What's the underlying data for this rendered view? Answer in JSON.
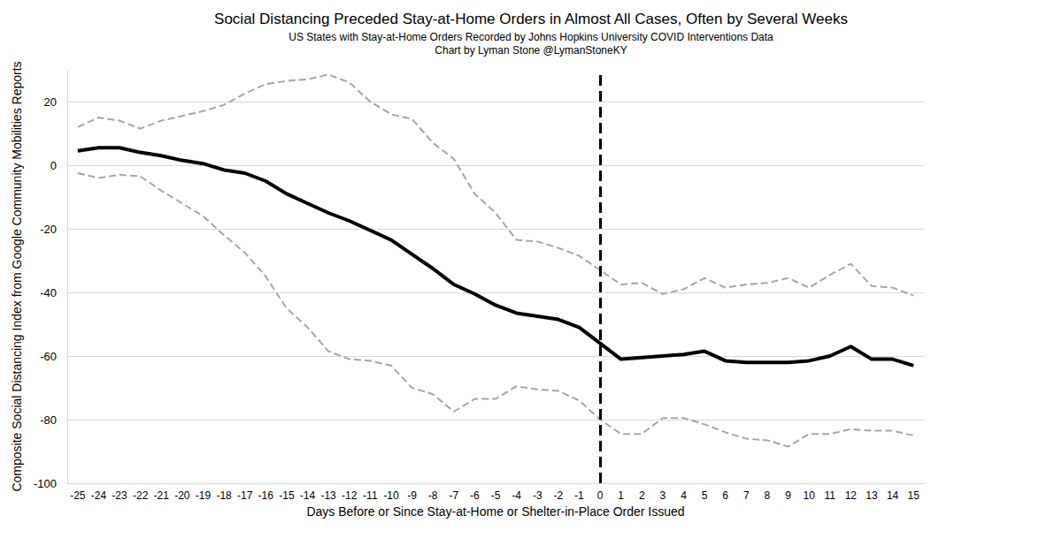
{
  "chart_data": {
    "type": "line",
    "title": "Social Distancing Preceded Stay-at-Home Orders in Almost All Cases, Often by Several Weeks",
    "subtitle": "US States with Stay-at-Home Orders Recorded by Johns Hopkins University COVID Interventions Data",
    "credit": "Chart by Lyman Stone @LymanStoneKY",
    "x_label": "Days Before or Since Stay-at-Home or Shelter-in-Place Order Issued",
    "y_label": "Composite Social Distancing Index from Google Community Mobilities Reports",
    "x": [
      -25,
      -24,
      -23,
      -22,
      -21,
      -20,
      -19,
      -18,
      -17,
      -16,
      -15,
      -14,
      -13,
      -12,
      -11,
      -10,
      -9,
      -8,
      -7,
      -6,
      -5,
      -4,
      -3,
      -2,
      -1,
      0,
      1,
      2,
      3,
      4,
      5,
      6,
      7,
      8,
      9,
      10,
      11,
      12,
      13,
      14,
      15
    ],
    "series": [
      {
        "color": "#000000",
        "line_style": "solid",
        "values": [
          4.5,
          5.5,
          5.5,
          4,
          3,
          1.5,
          0.5,
          -1.5,
          -2.5,
          -5,
          -9,
          -12,
          -15,
          -17.5,
          -20.5,
          -23.5,
          -28,
          -32.5,
          -37.5,
          -40.5,
          -44,
          -46.5,
          -47.5,
          -48.5,
          -51,
          -56,
          -61,
          -60.5,
          -60,
          -59.5,
          -58.5,
          -61.5,
          -62,
          -62,
          -62,
          -61.5,
          -60,
          -57,
          -61,
          -61,
          -63
        ]
      },
      {
        "color": "#a6a6a6",
        "line_style": "dashed",
        "values": [
          12,
          15,
          14,
          11.5,
          14,
          15.5,
          17,
          19,
          22.5,
          25.5,
          26.5,
          27,
          28.5,
          26,
          20,
          16,
          14.5,
          7,
          2,
          -9,
          -15,
          -23.5,
          -24,
          -26,
          -28.5,
          -33,
          -37.5,
          -37,
          -40.5,
          -39,
          -35.5,
          -38.5,
          -37.5,
          -37,
          -35.5,
          -38.5,
          -34.5,
          -31,
          -38,
          -38.5,
          -41
        ]
      },
      {
        "color": "#a6a6a6",
        "line_style": "dashed",
        "values": [
          -2.5,
          -4,
          -3,
          -3.5,
          -8,
          -12,
          -16,
          -22,
          -27.5,
          -35,
          -45,
          -51,
          -58.5,
          -61,
          -61.5,
          -63,
          -70,
          -72,
          -77.5,
          -73.5,
          -73.5,
          -69.5,
          -70.5,
          -71,
          -74,
          -80,
          -84.5,
          -84.5,
          -79.5,
          -79.5,
          -81.5,
          -84,
          -86,
          -86.5,
          -88.5,
          -84.5,
          -84.5,
          -83,
          -83.5,
          -83.5,
          -85
        ]
      }
    ],
    "reference_line": {
      "x": 0,
      "color": "#000000",
      "line_style": "dashed"
    },
    "ylim": [
      -100,
      30
    ],
    "yticks": [
      -100,
      -80,
      -60,
      -40,
      -20,
      0,
      20
    ],
    "grid": true
  }
}
